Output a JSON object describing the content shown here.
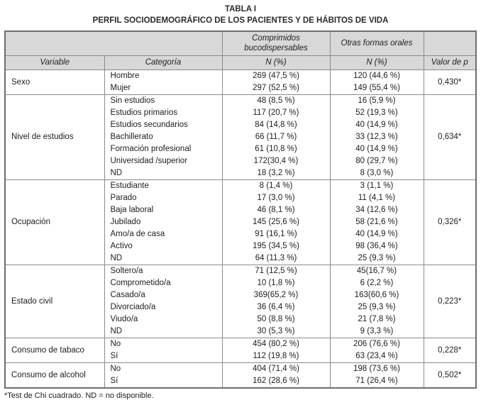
{
  "title": {
    "line1": "TABLA I",
    "line2": "PERFIL SOCIODEMOGRÁFICO DE LOS PACIENTES Y DE HÁBITOS DE VIDA"
  },
  "table": {
    "group_headers": [
      "Comprimidos bucodispersables",
      "Otras formas orales"
    ],
    "headers": [
      "Variable",
      "Categoría",
      "N (%)",
      "N (%)",
      "Valor de p"
    ],
    "groups": [
      {
        "variable": "Sexo",
        "rows": [
          [
            "Hombre",
            "269 (47,5 %)",
            "120 (44,6 %)"
          ],
          [
            "Mujer",
            "297 (52,5 %)",
            "149 (55,4 %)"
          ]
        ],
        "p": "0,430*"
      },
      {
        "variable": "Nivel de estudios",
        "rows": [
          [
            "Sin estudios",
            "48 (8,5 %)",
            "16 (5,9 %)"
          ],
          [
            "Estudios primarios",
            "117 (20,7 %)",
            "52 (19,3 %)"
          ],
          [
            "Estudios secundarios",
            "84 (14,8 %)",
            "40 (14,9 %)"
          ],
          [
            "Bachillerato",
            "66 (11,7 %)",
            "33 (12,3 %)"
          ],
          [
            "Formación profesional",
            "61 (10,8 %)",
            "40 (14,9 %)"
          ],
          [
            "Universidad /superior",
            "172(30,4 %)",
            "80 (29,7 %)"
          ],
          [
            "ND",
            "18 (3,2 %)",
            "8 (3,0 %)"
          ]
        ],
        "p": "0,634*"
      },
      {
        "variable": "Ocupación",
        "rows": [
          [
            "Estudiante",
            "8 (1,4 %)",
            "3 (1,1 %)"
          ],
          [
            "Parado",
            "17 (3,0 %)",
            "11 (4,1 %)"
          ],
          [
            "Baja laboral",
            "46 (8,1 %)",
            "34 (12,6 %)"
          ],
          [
            "Jubilado",
            "145 (25,6 %)",
            "58 (21,6 %)"
          ],
          [
            "Amo/a de casa",
            "91 (16,1 %)",
            "40 (14,9 %)"
          ],
          [
            "Activo",
            "195 (34,5 %)",
            "98 (36,4 %)"
          ],
          [
            "ND",
            "64 (11,3 %)",
            "25 (9,3 %)"
          ]
        ],
        "p": "0,326*"
      },
      {
        "variable": "Estado civil",
        "rows": [
          [
            "Soltero/a",
            "71 (12,5 %)",
            "45(16,7 %)"
          ],
          [
            "Comprometido/a",
            "10 (1,8 %)",
            "6 (2,2 %)"
          ],
          [
            "Casado/a",
            "369(65,2 %)",
            "163(60,6 %)"
          ],
          [
            "Divorciado/a",
            "36 (6,4 %)",
            "25 (9,3 %)"
          ],
          [
            "Viudo/a",
            "50 (8,8 %)",
            "21 (7,8 %)"
          ],
          [
            "ND",
            "30 (5,3 %)",
            "9 (3,3 %)"
          ]
        ],
        "p": "0,223*"
      },
      {
        "variable": "Consumo de tabaco",
        "rows": [
          [
            "No",
            "454 (80,2 %)",
            "206 (76,6 %)"
          ],
          [
            "Sí",
            "112 (19,8 %)",
            "63 (23,4 %)"
          ]
        ],
        "p": "0,228*"
      },
      {
        "variable": "Consumo de alcohol",
        "rows": [
          [
            "No",
            "404 (71,4 %)",
            "198 (73,6 %)"
          ],
          [
            "Sí",
            "162 (28,6 %)",
            "71 (26,4 %)"
          ]
        ],
        "p": "0,502*"
      }
    ]
  },
  "footnote": "*Test de Chi cuadrado. ND = no disponible."
}
